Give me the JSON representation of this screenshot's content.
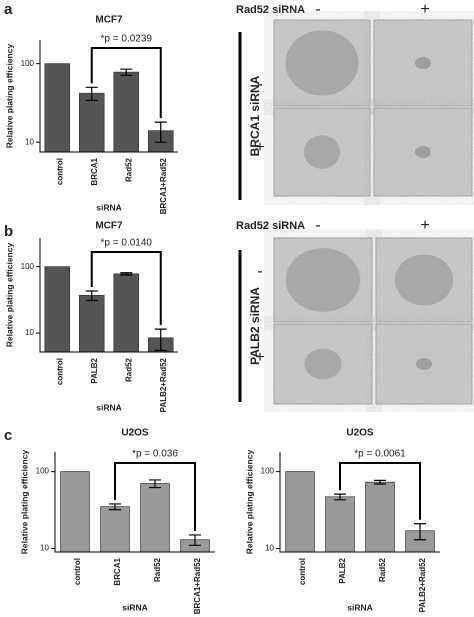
{
  "panel_labels": [
    "a",
    "b",
    "c"
  ],
  "image_grids": [
    {
      "header": "Rad52 siRNA",
      "col_labels": [
        "-",
        "+"
      ],
      "row_labels": [
        "-",
        "+"
      ],
      "row_title": "BRCA1 siRNA"
    },
    {
      "header": "Rad52 siRNA",
      "col_labels": [
        "-",
        "+"
      ],
      "row_labels": [
        "-",
        "+"
      ],
      "row_title": "PALB2 siRNA"
    }
  ],
  "chart_data": [
    {
      "type": "bar",
      "title": "MCF7",
      "ylabel": "Relative plating efficiency",
      "xlabel": "siRNA",
      "annotation": "*p = 0.0239",
      "categories": [
        "control",
        "BRCA1",
        "Rad52",
        "BRCA1+Rad52"
      ],
      "values": [
        100,
        42,
        78,
        14
      ],
      "errors": [
        0,
        8,
        7,
        4
      ],
      "color": "#555555",
      "log_scale": true,
      "ylim": [
        7.5,
        200
      ],
      "yticks": [
        10,
        100
      ]
    },
    {
      "type": "bar",
      "title": "MCF7",
      "ylabel": "Relative plating efficiency",
      "xlabel": "siRNA",
      "annotation": "*p = 0.0140",
      "categories": [
        "control",
        "PALB2",
        "Rad52",
        "PALB2+Rad52"
      ],
      "values": [
        100,
        37,
        78,
        8.5
      ],
      "errors": [
        0,
        6,
        3,
        3
      ],
      "color": "#555555",
      "log_scale": true,
      "ylim": [
        5.2,
        270
      ],
      "yticks": [
        10,
        100
      ]
    },
    {
      "type": "bar",
      "title": "U2OS",
      "ylabel": "Relative plating efficiency",
      "xlabel": "siRNA",
      "annotation": "*p = 0.036",
      "categories": [
        "control",
        "BRCA1",
        "Rad52",
        "BRCA1+Rad52"
      ],
      "values": [
        100,
        35,
        70,
        13
      ],
      "errors": [
        0,
        3,
        8,
        2
      ],
      "color": "#9a9a9a",
      "log_scale": true,
      "ylim": [
        9,
        180
      ],
      "yticks": [
        10,
        100
      ]
    },
    {
      "type": "bar",
      "title": "U2OS",
      "ylabel": "Relative plating efficiency",
      "xlabel": "siRNA",
      "annotation": "*p = 0.0061",
      "categories": [
        "control",
        "PALB2",
        "Rad52",
        "PALB2+Rad52"
      ],
      "values": [
        100,
        47,
        73,
        17
      ],
      "errors": [
        0,
        4,
        4,
        4
      ],
      "color": "#9a9a9a",
      "log_scale": true,
      "ylim": [
        9,
        180
      ],
      "yticks": [
        10,
        100
      ]
    }
  ]
}
